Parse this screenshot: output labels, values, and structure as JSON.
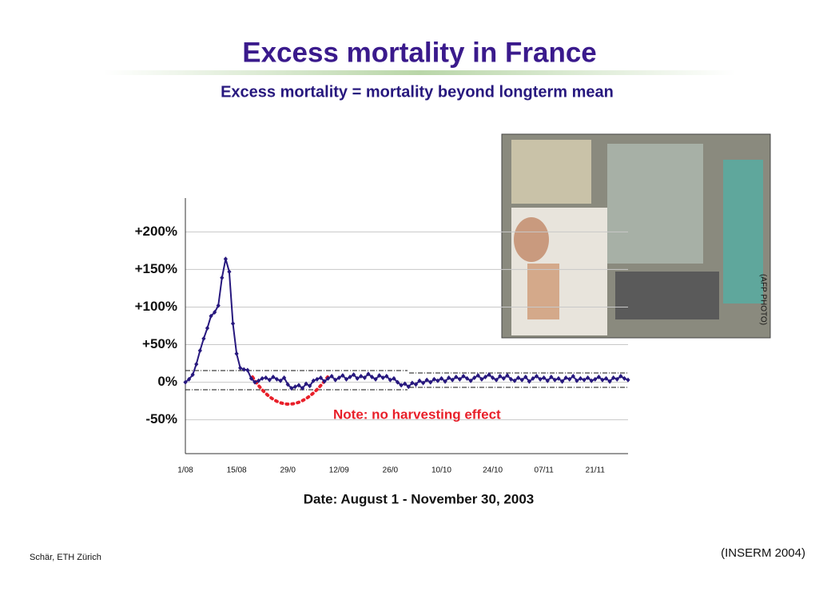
{
  "chart_data": {
    "type": "line",
    "title": "Excess mortality in France",
    "subtitle": "Excess mortality  =  mortality beyond longterm mean",
    "x_label": "Date: August 1 - November 30, 2003",
    "annotation": "Note: no harvesting effect",
    "categories": [
      "1/08",
      null,
      null,
      null,
      null,
      null,
      null,
      null,
      null,
      null,
      null,
      null,
      null,
      null,
      "15/08",
      null,
      null,
      null,
      null,
      null,
      null,
      null,
      null,
      null,
      null,
      null,
      null,
      null,
      "29/0",
      null,
      null,
      null,
      null,
      null,
      null,
      null,
      null,
      null,
      null,
      null,
      null,
      null,
      "12/09",
      null,
      null,
      null,
      null,
      null,
      null,
      null,
      null,
      null,
      null,
      null,
      null,
      null,
      "26/0",
      null,
      null,
      null,
      null,
      null,
      null,
      null,
      null,
      null,
      null,
      null,
      null,
      null,
      "10/10",
      null,
      null,
      null,
      null,
      null,
      null,
      null,
      null,
      null,
      null,
      null,
      null,
      null,
      "24/10",
      null,
      null,
      null,
      null,
      null,
      null,
      null,
      null,
      null,
      null,
      null,
      null,
      null,
      "07/11",
      null,
      null,
      null,
      null,
      null,
      null,
      null,
      null,
      null,
      null,
      null,
      null,
      null,
      "21/11",
      null,
      null,
      null,
      null,
      null,
      null,
      null,
      null,
      null
    ],
    "values": [
      0,
      4,
      10,
      24,
      42,
      58,
      72,
      88,
      93,
      102,
      139,
      164,
      147,
      78,
      38,
      19,
      17,
      16,
      5,
      0,
      2,
      5,
      6,
      3,
      7,
      4,
      2,
      6,
      -3,
      -8,
      -6,
      -4,
      -8,
      -2,
      -5,
      2,
      4,
      6,
      1,
      5,
      8,
      3,
      6,
      9,
      4,
      7,
      10,
      5,
      8,
      6,
      11,
      7,
      4,
      9,
      6,
      8,
      3,
      5,
      0,
      -4,
      -2,
      -6,
      -1,
      -3,
      2,
      -1,
      3,
      0,
      4,
      2,
      5,
      1,
      6,
      3,
      7,
      4,
      8,
      5,
      2,
      6,
      9,
      4,
      7,
      10,
      6,
      3,
      8,
      5,
      9,
      4,
      2,
      6,
      3,
      7,
      1,
      5,
      8,
      4,
      6,
      2,
      7,
      3,
      5,
      1,
      6,
      4,
      8,
      2,
      5,
      3,
      6,
      2,
      4,
      7,
      3,
      5,
      1,
      6,
      4,
      8,
      5,
      3
    ],
    "color": "#27187e",
    "ylim": [
      -95,
      245
    ],
    "yticks": [
      {
        "value": 200,
        "label": "+200%"
      },
      {
        "value": 150,
        "label": "+150%"
      },
      {
        "value": 100,
        "label": "+100%"
      },
      {
        "value": 50,
        "label": "+50%"
      },
      {
        "value": 0,
        "label": "0%"
      },
      {
        "value": -50,
        "label": "-50%"
      }
    ],
    "grid": true
  },
  "photo": {
    "credit": "(AFP PHOTO)"
  },
  "footer": {
    "author": "Schär, ETH Zürich",
    "source": "(INSERM 2004)"
  }
}
